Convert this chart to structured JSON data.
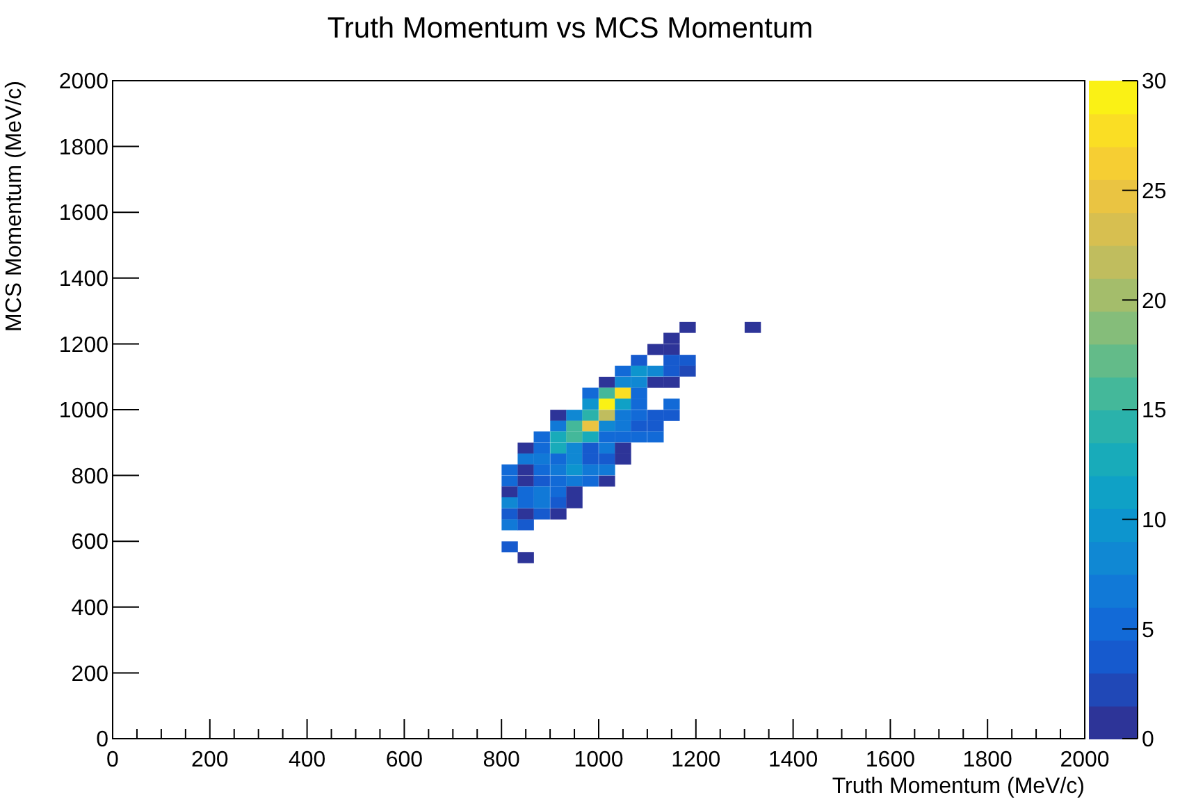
{
  "chart_data": {
    "type": "scatter",
    "title": "Truth Momentum vs MCS Momentum",
    "xlabel": "Truth Momentum (MeV/c)",
    "ylabel": "MCS Momentum (MeV/c)",
    "marker": "square",
    "grid": false,
    "xlim": [
      0,
      2000
    ],
    "ylim": [
      0,
      2000
    ],
    "xticks": [
      0,
      {
        "value": 50,
        "label": null
      },
      {
        "value": 100,
        "label": null
      },
      {
        "value": 150,
        "label": null
      },
      200,
      {
        "value": 250,
        "label": null
      },
      {
        "value": 300,
        "label": null
      },
      {
        "value": 350,
        "label": null
      },
      400,
      {
        "value": 450,
        "label": null
      },
      {
        "value": 500,
        "label": null
      },
      {
        "value": 550,
        "label": null
      },
      600,
      {
        "value": 650,
        "label": null
      },
      {
        "value": 700,
        "label": null
      },
      {
        "value": 750,
        "label": null
      },
      800,
      {
        "value": 850,
        "label": null
      },
      {
        "value": 900,
        "label": null
      },
      {
        "value": 950,
        "label": null
      },
      1000,
      {
        "value": 1050,
        "label": null
      },
      {
        "value": 1100,
        "label": null
      },
      {
        "value": 1150,
        "label": null
      },
      1200,
      {
        "value": 1250,
        "label": null
      },
      {
        "value": 1300,
        "label": null
      },
      {
        "value": 1350,
        "label": null
      },
      1400,
      {
        "value": 1450,
        "label": null
      },
      {
        "value": 1500,
        "label": null
      },
      {
        "value": 1550,
        "label": null
      },
      1600,
      {
        "value": 1650,
        "label": null
      },
      {
        "value": 1700,
        "label": null
      },
      {
        "value": 1750,
        "label": null
      },
      1800,
      {
        "value": 1850,
        "label": null
      },
      {
        "value": 1900,
        "label": null
      },
      {
        "value": 1950,
        "label": null
      },
      2000
    ],
    "yticks": [
      0,
      200,
      400,
      600,
      800,
      1000,
      1200,
      1400,
      1600,
      1800,
      2000
    ],
    "clim": [
      0,
      30
    ],
    "cticks": [
      0,
      5,
      10,
      15,
      20,
      25,
      30
    ],
    "x": [
      1183,
      1317,
      1150,
      1117,
      1150,
      1083,
      1150,
      1183,
      1050,
      1083,
      1117,
      1150,
      1183,
      1017,
      1050,
      1083,
      1117,
      1150,
      983,
      1017,
      1050,
      1083,
      983,
      1017,
      1050,
      1083,
      1150,
      917,
      950,
      983,
      1017,
      1050,
      1083,
      1117,
      1150,
      917,
      950,
      983,
      1017,
      1050,
      1083,
      1117,
      883,
      917,
      950,
      983,
      1017,
      1050,
      1083,
      1117,
      850,
      883,
      917,
      950,
      983,
      1017,
      1050,
      850,
      883,
      917,
      950,
      983,
      1017,
      1050,
      817,
      850,
      883,
      917,
      950,
      983,
      1017,
      817,
      850,
      883,
      917,
      950,
      983,
      1017,
      817,
      850,
      883,
      917,
      950,
      817,
      850,
      883,
      917,
      950,
      817,
      850,
      883,
      917,
      817,
      850,
      817,
      850
    ],
    "values": [
      1250,
      1250,
      1217,
      1183,
      1183,
      1150,
      1150,
      1150,
      1117,
      1117,
      1117,
      1117,
      1117,
      1083,
      1083,
      1083,
      1083,
      1083,
      1050,
      1050,
      1050,
      1050,
      1017,
      1017,
      1017,
      1017,
      1017,
      983,
      983,
      983,
      983,
      983,
      983,
      983,
      983,
      950,
      950,
      950,
      950,
      950,
      950,
      950,
      917,
      917,
      917,
      917,
      917,
      917,
      917,
      917,
      883,
      883,
      883,
      883,
      883,
      883,
      883,
      850,
      850,
      850,
      850,
      850,
      850,
      850,
      817,
      817,
      817,
      817,
      817,
      817,
      817,
      783,
      783,
      783,
      783,
      783,
      783,
      783,
      750,
      750,
      750,
      750,
      750,
      717,
      717,
      717,
      717,
      717,
      683,
      683,
      683,
      683,
      650,
      650,
      583,
      550
    ],
    "cvalues": [
      1,
      1,
      1,
      1,
      1,
      4,
      4,
      4,
      5,
      10,
      8,
      4,
      2,
      1,
      8,
      8,
      1,
      1,
      5,
      16,
      27,
      5,
      9,
      30,
      11,
      5,
      5,
      1,
      8,
      14,
      21,
      7,
      5,
      4,
      4,
      6,
      16,
      24,
      8,
      6,
      3,
      3,
      5,
      13,
      16,
      13,
      5,
      5,
      5,
      5,
      1,
      5,
      13,
      8,
      4,
      6,
      1,
      7,
      7,
      5,
      8,
      3,
      3,
      1,
      5,
      1,
      5,
      7,
      10,
      7,
      7,
      5,
      1,
      4,
      5,
      7,
      5,
      1,
      1,
      5,
      7,
      5,
      1,
      8,
      5,
      6,
      3,
      1,
      3,
      1,
      4,
      1,
      6,
      3,
      4,
      1
    ]
  }
}
